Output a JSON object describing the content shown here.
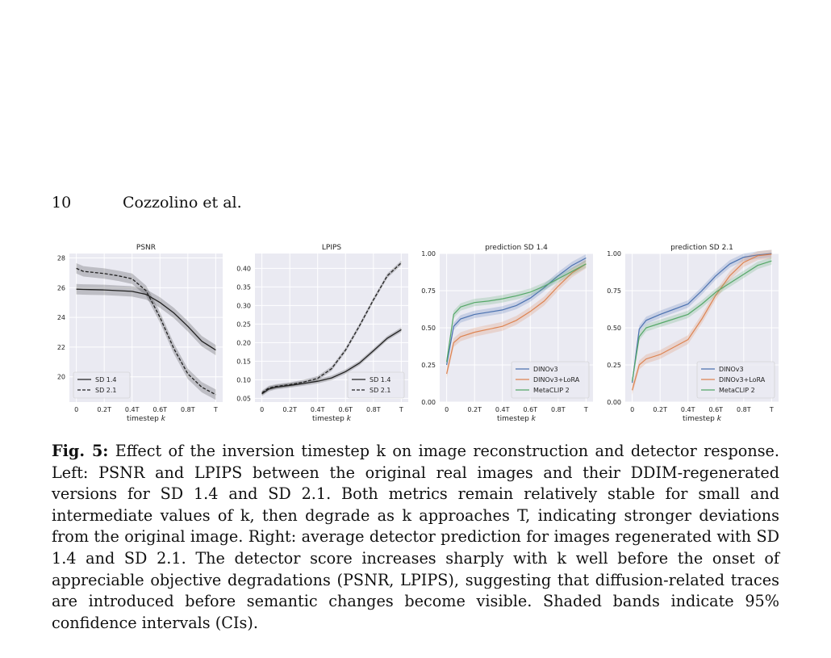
{
  "header": {
    "page_number": "10",
    "running_title": "Cozzolino et al."
  },
  "caption": {
    "label": "Fig. 5:",
    "text": "Effect of the inversion timestep k on image reconstruction and detector response. Left: PSNR and LPIPS between the original real images and their DDIM-regenerated versions for SD 1.4 and SD 2.1. Both metrics remain relatively stable for small and intermediate values of k, then degrade as k approaches T, indicating stronger deviations from the original image. Right: average detector prediction for images regenerated with SD 1.4 and SD 2.1. The detector score increases sharply with k well before the onset of appreciable objective degradations (PSNR, LPIPS), suggesting that diffusion-related traces are introduced before semantic changes become visible. Shaded bands indicate 95% confidence intervals (CIs)."
  },
  "chart_data": [
    {
      "type": "line",
      "title": "PSNR",
      "xlabel": "timestep k",
      "ylabel": "",
      "x": [
        0,
        0.05,
        0.1,
        0.2,
        0.3,
        0.4,
        0.5,
        0.6,
        0.7,
        0.8,
        0.9,
        1.0
      ],
      "xticks": [
        0,
        0.2,
        0.4,
        0.6,
        0.8,
        1.0
      ],
      "xtick_labels": [
        "0",
        "0.2T",
        "0.4T",
        "0.6T",
        "0.8T",
        "T"
      ],
      "ylim": [
        18.3,
        28.3
      ],
      "yticks": [
        20,
        22,
        24,
        26,
        28
      ],
      "ytick_labels": [
        "20",
        "22",
        "24",
        "26",
        "28"
      ],
      "legend_position": "lower-left",
      "series": [
        {
          "name": "SD 1.4",
          "style": "solid",
          "color": "#222222",
          "ci": 0.35,
          "values": [
            25.9,
            25.88,
            25.87,
            25.85,
            25.8,
            25.75,
            25.55,
            25.0,
            24.3,
            23.4,
            22.4,
            21.8
          ]
        },
        {
          "name": "SD 2.1",
          "style": "dashed",
          "color": "#222222",
          "ci": 0.35,
          "values": [
            27.3,
            27.1,
            27.05,
            26.95,
            26.8,
            26.6,
            25.8,
            24.0,
            21.9,
            20.2,
            19.3,
            18.8
          ]
        }
      ]
    },
    {
      "type": "line",
      "title": "LPIPS",
      "xlabel": "timestep k",
      "ylabel": "",
      "x": [
        0,
        0.05,
        0.1,
        0.2,
        0.3,
        0.4,
        0.5,
        0.6,
        0.7,
        0.8,
        0.9,
        1.0
      ],
      "xticks": [
        0,
        0.2,
        0.4,
        0.6,
        0.8,
        1.0
      ],
      "xtick_labels": [
        "0",
        "0.2T",
        "0.4T",
        "0.6T",
        "0.8T",
        "T"
      ],
      "ylim": [
        0.04,
        0.44
      ],
      "yticks": [
        0.05,
        0.1,
        0.15,
        0.2,
        0.25,
        0.3,
        0.35,
        0.4
      ],
      "ytick_labels": [
        "0.05",
        "0.10",
        "0.15",
        "0.20",
        "0.25",
        "0.30",
        "0.35",
        "0.40"
      ],
      "legend_position": "lower-right",
      "series": [
        {
          "name": "SD 1.4",
          "style": "solid",
          "color": "#222222",
          "ci": 0.006,
          "values": [
            0.062,
            0.075,
            0.08,
            0.085,
            0.09,
            0.096,
            0.105,
            0.122,
            0.145,
            0.178,
            0.212,
            0.235
          ]
        },
        {
          "name": "SD 2.1",
          "style": "dashed",
          "color": "#222222",
          "ci": 0.006,
          "values": [
            0.065,
            0.078,
            0.082,
            0.087,
            0.094,
            0.104,
            0.13,
            0.18,
            0.245,
            0.315,
            0.38,
            0.415
          ]
        }
      ]
    },
    {
      "type": "line",
      "title": "prediction SD 1.4",
      "xlabel": "timestep k",
      "ylabel": "",
      "x": [
        0,
        0.05,
        0.1,
        0.2,
        0.3,
        0.4,
        0.5,
        0.6,
        0.7,
        0.8,
        0.9,
        1.0
      ],
      "xticks": [
        0,
        0.2,
        0.4,
        0.6,
        0.8,
        1.0
      ],
      "xtick_labels": [
        "0",
        "0.2T",
        "0.4T",
        "0.6T",
        "0.8T",
        "T"
      ],
      "ylim": [
        0,
        1.0
      ],
      "yticks": [
        0,
        0.25,
        0.5,
        0.75,
        1.0
      ],
      "ytick_labels": [
        "0.00",
        "0.25",
        "0.50",
        "0.75",
        "1.00"
      ],
      "legend_position": "lower-right",
      "series": [
        {
          "name": "DINOv3",
          "color": "#4c72b0",
          "ci": 0.025,
          "values": [
            0.25,
            0.51,
            0.56,
            0.59,
            0.605,
            0.62,
            0.65,
            0.7,
            0.77,
            0.85,
            0.92,
            0.97
          ]
        },
        {
          "name": "DINOv3+LoRA",
          "color": "#dd8452",
          "ci": 0.03,
          "values": [
            0.19,
            0.4,
            0.44,
            0.47,
            0.49,
            0.51,
            0.55,
            0.61,
            0.68,
            0.78,
            0.87,
            0.93
          ]
        },
        {
          "name": "MetaCLIP 2",
          "color": "#55a868",
          "ci": 0.025,
          "values": [
            0.27,
            0.59,
            0.64,
            0.67,
            0.68,
            0.695,
            0.715,
            0.74,
            0.78,
            0.83,
            0.88,
            0.93
          ]
        }
      ]
    },
    {
      "type": "line",
      "title": "prediction SD 2.1",
      "xlabel": "timestep k",
      "ylabel": "",
      "x": [
        0,
        0.05,
        0.1,
        0.2,
        0.3,
        0.4,
        0.5,
        0.6,
        0.7,
        0.8,
        0.9,
        1.0
      ],
      "xticks": [
        0,
        0.2,
        0.4,
        0.6,
        0.8,
        1.0
      ],
      "xtick_labels": [
        "0",
        "0.2T",
        "0.4T",
        "0.6T",
        "0.8T",
        "T"
      ],
      "ylim": [
        0,
        1.0
      ],
      "yticks": [
        0,
        0.25,
        0.5,
        0.75,
        1.0
      ],
      "ytick_labels": [
        "0.00",
        "0.25",
        "0.50",
        "0.75",
        "1.00"
      ],
      "legend_position": "lower-right",
      "series": [
        {
          "name": "DINOv3",
          "color": "#4c72b0",
          "ci": 0.025,
          "values": [
            0.13,
            0.49,
            0.55,
            0.59,
            0.625,
            0.66,
            0.75,
            0.85,
            0.93,
            0.975,
            0.99,
            1.0
          ]
        },
        {
          "name": "DINOv3+LoRA",
          "color": "#dd8452",
          "ci": 0.03,
          "values": [
            0.08,
            0.25,
            0.29,
            0.32,
            0.37,
            0.42,
            0.56,
            0.72,
            0.85,
            0.94,
            0.985,
            0.995
          ]
        },
        {
          "name": "MetaCLIP 2",
          "color": "#55a868",
          "ci": 0.025,
          "values": [
            0.14,
            0.44,
            0.5,
            0.53,
            0.56,
            0.59,
            0.66,
            0.74,
            0.8,
            0.86,
            0.92,
            0.95
          ]
        }
      ]
    }
  ]
}
